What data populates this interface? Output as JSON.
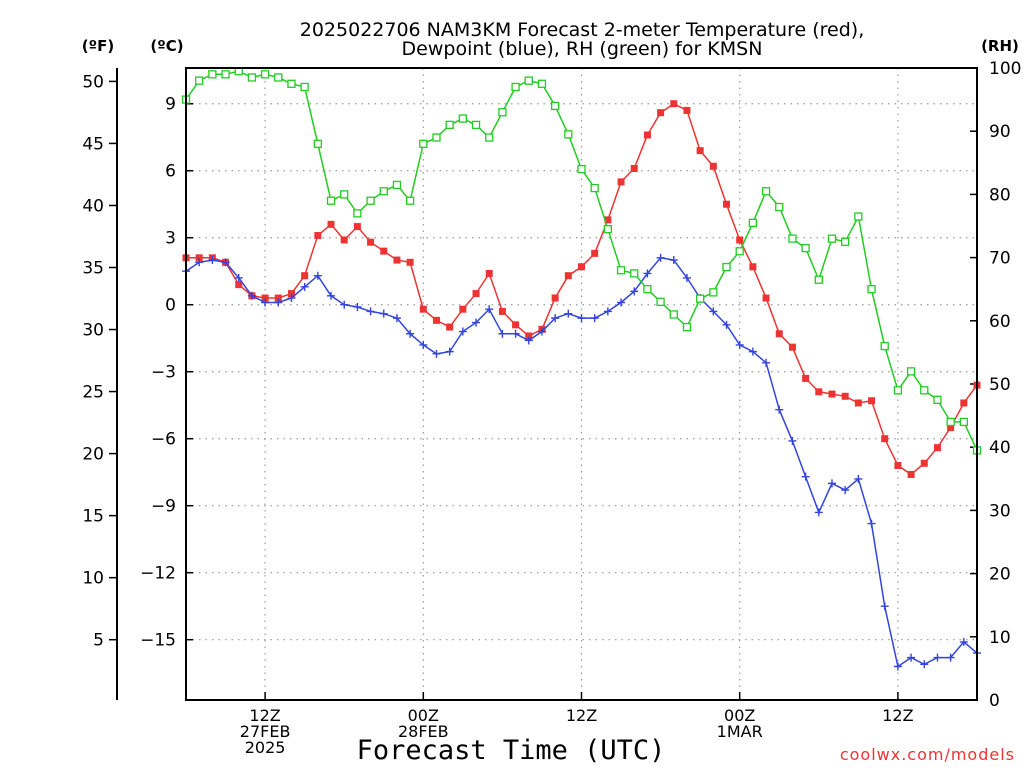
{
  "chart_data": {
    "type": "line",
    "title_line1": "2025022706 NAM3KM Forecast 2-meter Temperature (red),",
    "title_line2": "Dewpoint (blue), RH (green) for KMSN",
    "xlabel": "Forecast Time (UTC)",
    "y_left_outer_unit": "(ºF)",
    "y_left_inner_unit": "(ºC)",
    "y_right_unit": "(RH)",
    "watermark": "coolwx.com/models",
    "colors": {
      "temperature": "#ee3333",
      "dewpoint": "#3344dd",
      "rh": "#22cc22",
      "grid": "#999999"
    },
    "x_ticks": [
      {
        "hour": 6,
        "label": [
          "12Z",
          "27FEB",
          "2025"
        ]
      },
      {
        "hour": 18,
        "label": [
          "00Z",
          "28FEB"
        ]
      },
      {
        "hour": 30,
        "label": [
          "12Z"
        ]
      },
      {
        "hour": 42,
        "label": [
          "00Z",
          "1MAR"
        ]
      },
      {
        "hour": 54,
        "label": [
          "12Z"
        ]
      }
    ],
    "xlim": [
      0,
      60
    ],
    "ylim_celsius": [
      -17.7,
      10.6
    ],
    "ylim_rh": [
      0,
      100
    ],
    "celsius_ticks": [
      9,
      6,
      3,
      0,
      -3,
      -6,
      -9,
      -12,
      -15
    ],
    "celsius_tick_labels": [
      "9",
      "6",
      "3",
      "0",
      "−3",
      "−6",
      "−9",
      "−12",
      "−15"
    ],
    "fahrenheit_ticks": [
      50,
      45,
      40,
      35,
      30,
      25,
      20,
      15,
      10,
      5
    ],
    "fahrenheit_tick_labels": [
      "50",
      "45",
      "40",
      "35",
      "30",
      "25",
      "20",
      "15",
      "10",
      "5"
    ],
    "rh_ticks": [
      100,
      90,
      80,
      70,
      60,
      50,
      40,
      30,
      20,
      10,
      0
    ],
    "rh_tick_labels": [
      "100",
      "90",
      "80",
      "70",
      "60",
      "50",
      "40",
      "30",
      "20",
      "10",
      "0"
    ],
    "series": [
      {
        "name": "Temperature (red)",
        "key": "temperature",
        "axis": "celsius",
        "marker": "filled-square",
        "x": [
          0,
          1,
          2,
          3,
          4,
          5,
          6,
          7,
          8,
          9,
          10,
          11,
          12,
          13,
          14,
          15,
          16,
          17,
          18,
          19,
          20,
          21,
          22,
          23,
          24,
          25,
          26,
          27,
          28,
          29,
          30,
          31,
          32,
          33,
          34,
          35,
          36,
          37,
          38,
          39,
          40,
          41,
          42,
          43,
          44,
          45,
          46,
          47,
          48,
          49,
          50,
          51,
          52,
          53,
          54,
          55,
          56,
          57,
          58,
          59,
          60
        ],
        "values": [
          2.1,
          2.1,
          2.1,
          1.9,
          0.9,
          0.4,
          0.3,
          0.3,
          0.5,
          1.3,
          3.1,
          3.6,
          2.9,
          3.5,
          2.8,
          2.4,
          2.0,
          1.9,
          -0.2,
          -0.7,
          -1.0,
          -0.2,
          0.5,
          1.4,
          -0.3,
          -0.9,
          -1.4,
          -1.1,
          0.3,
          1.3,
          1.7,
          2.3,
          3.8,
          5.5,
          6.1,
          7.6,
          8.6,
          9.0,
          8.7,
          6.9,
          6.2,
          4.5,
          2.9,
          1.7,
          0.3,
          -1.3,
          -1.9,
          -3.3,
          -3.9,
          -4.0,
          -4.1,
          -4.4,
          -4.3,
          -6.0,
          -7.2,
          -7.6,
          -7.1,
          -6.4,
          -5.5,
          -4.4,
          -3.6
        ]
      },
      {
        "name": "Dewpoint (blue)",
        "key": "dewpoint",
        "axis": "celsius",
        "marker": "plus",
        "x": [
          0,
          1,
          2,
          3,
          4,
          5,
          6,
          7,
          8,
          9,
          10,
          11,
          12,
          13,
          14,
          15,
          16,
          17,
          18,
          19,
          20,
          21,
          22,
          23,
          24,
          25,
          26,
          27,
          28,
          29,
          30,
          31,
          32,
          33,
          34,
          35,
          36,
          37,
          38,
          39,
          40,
          41,
          42,
          43,
          44,
          45,
          46,
          47,
          48,
          49,
          50,
          51,
          52,
          53,
          54,
          55,
          56,
          57,
          58,
          59,
          60
        ],
        "values": [
          1.5,
          1.9,
          2.0,
          1.9,
          1.2,
          0.4,
          0.1,
          0.1,
          0.3,
          0.8,
          1.3,
          0.4,
          0.0,
          -0.1,
          -0.3,
          -0.4,
          -0.6,
          -1.3,
          -1.8,
          -2.2,
          -2.1,
          -1.2,
          -0.8,
          -0.2,
          -1.3,
          -1.3,
          -1.6,
          -1.2,
          -0.6,
          -0.4,
          -0.6,
          -0.6,
          -0.3,
          0.1,
          0.6,
          1.4,
          2.1,
          2.0,
          1.2,
          0.3,
          -0.3,
          -0.9,
          -1.8,
          -2.1,
          -2.6,
          -4.7,
          -6.1,
          -7.7,
          -9.3,
          -8.0,
          -8.3,
          -7.8,
          -9.8,
          -13.5,
          -16.2,
          -15.8,
          -16.1,
          -15.8,
          -15.8,
          -15.1,
          -15.6
        ]
      },
      {
        "name": "RH (green)",
        "key": "rh",
        "axis": "rh",
        "marker": "open-square",
        "x": [
          0,
          1,
          2,
          3,
          4,
          5,
          6,
          7,
          8,
          9,
          10,
          11,
          12,
          13,
          14,
          15,
          16,
          17,
          18,
          19,
          20,
          21,
          22,
          23,
          24,
          25,
          26,
          27,
          28,
          29,
          30,
          31,
          32,
          33,
          34,
          35,
          36,
          37,
          38,
          39,
          40,
          41,
          42,
          43,
          44,
          45,
          46,
          47,
          48,
          49,
          50,
          51,
          52,
          53,
          54,
          55,
          56,
          57,
          58,
          59,
          60
        ],
        "values": [
          95,
          98,
          99,
          99,
          99.5,
          98.5,
          99,
          98.5,
          97.5,
          97,
          88,
          79,
          80,
          77,
          79,
          80.5,
          81.5,
          79,
          88,
          89,
          91,
          92,
          91,
          89,
          93,
          97,
          98,
          97.5,
          94,
          89.5,
          84,
          81,
          74.5,
          68,
          67.5,
          65,
          63,
          61,
          59,
          63.5,
          64.5,
          68.5,
          71,
          75.5,
          80.5,
          78,
          73,
          71.5,
          66.5,
          73,
          72.5,
          76.5,
          65,
          56,
          49,
          52,
          49,
          47.5,
          44,
          44,
          39.5
        ]
      }
    ]
  }
}
